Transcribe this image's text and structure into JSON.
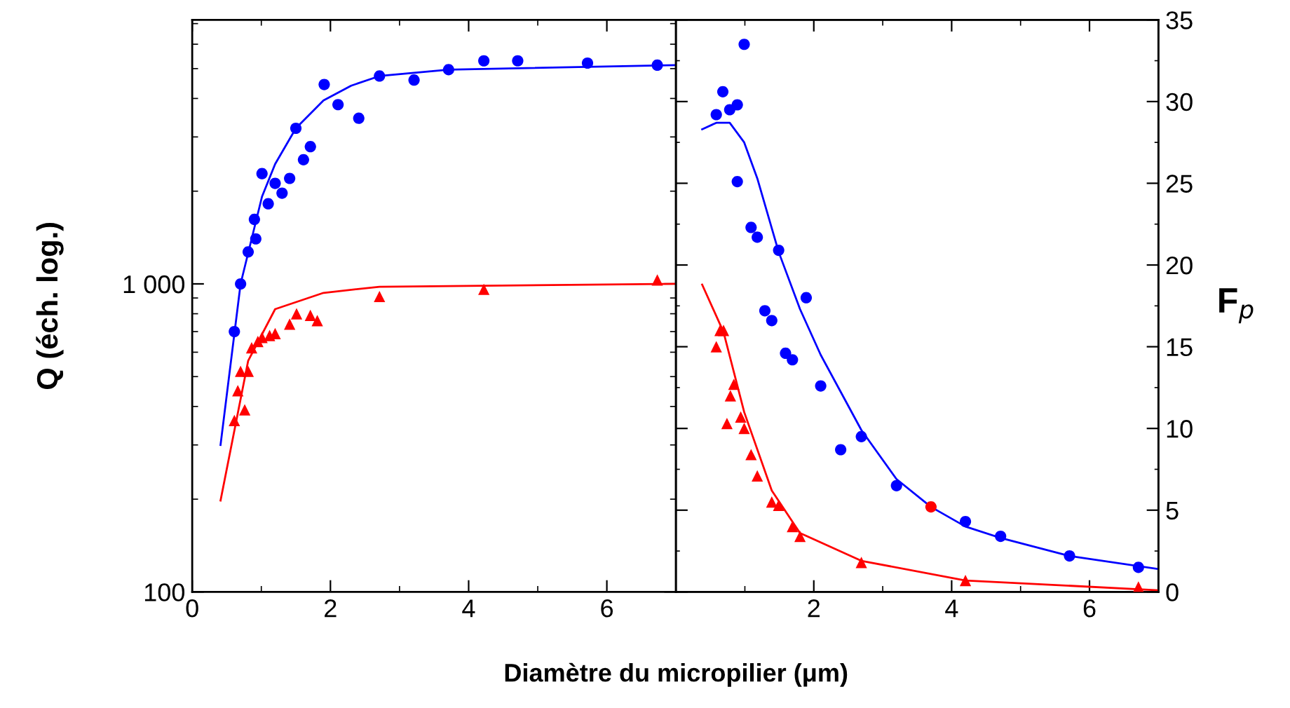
{
  "chart_data": [
    {
      "type": "scatter",
      "ylabel": "Q (éch. log.)",
      "xlabel": "Diamètre du micropilier (μm)",
      "log": "y",
      "xlim": [
        0,
        7
      ],
      "xticks": [
        0,
        2,
        4,
        6
      ],
      "ylim": [
        100,
        7200
      ],
      "yticks": [
        100,
        {
          "value": 1000,
          "label": "1 000"
        }
      ],
      "series": [
        {
          "marker": "circle",
          "color": "#0000ff",
          "x": [
            0.61,
            0.7,
            0.81,
            0.92,
            0.9,
            1.01,
            1.1,
            1.2,
            1.3,
            1.41,
            1.5,
            1.61,
            1.71,
            1.91,
            2.11,
            2.41,
            2.71,
            3.21,
            3.71,
            4.22,
            4.71,
            5.72,
            6.73
          ],
          "values": [
            700,
            1000,
            1270,
            1400,
            1620,
            2280,
            1820,
            2120,
            1970,
            2200,
            3200,
            2530,
            2790,
            4440,
            3820,
            3450,
            4730,
            4590,
            4960,
            5300,
            5300,
            5210,
            5130
          ]
        },
        {
          "marker": "triangle",
          "color": "#ff0000",
          "x": [
            0.61,
            0.66,
            0.7,
            0.76,
            0.81,
            0.86,
            0.95,
            1.01,
            1.12,
            1.2,
            1.41,
            1.51,
            1.71,
            1.81,
            2.71,
            4.22,
            6.73
          ],
          "values": [
            360,
            450,
            520,
            390,
            520,
            620,
            650,
            670,
            680,
            690,
            740,
            800,
            790,
            760,
            910,
            960,
            1030
          ]
        },
        {
          "type": "line",
          "marker": "none",
          "line_style": "solid",
          "color": "#0000ff",
          "x": [
            0.41,
            0.7,
            1.01,
            1.2,
            1.5,
            1.9,
            2.3,
            2.71,
            3.71,
            7.0
          ],
          "values": [
            300,
            1000,
            1920,
            2450,
            3200,
            3940,
            4400,
            4730,
            4960,
            5130
          ]
        },
        {
          "type": "line",
          "marker": "none",
          "line_style": "solid",
          "color": "#ff0000",
          "x": [
            0.41,
            0.81,
            1.2,
            1.9,
            2.71,
            7.0
          ],
          "values": [
            198,
            563,
            828,
            935,
            979,
            1000
          ]
        }
      ]
    },
    {
      "type": "scatter",
      "y2label": "F$_{p}$",
      "xlim": [
        0,
        7
      ],
      "xticks": [
        2,
        4,
        6
      ],
      "y2lim": [
        0,
        35
      ],
      "y2ticks": [
        0,
        5,
        10,
        15,
        20,
        25,
        30,
        35
      ],
      "series": [
        {
          "axis": "y2",
          "marker": "circle",
          "color": "#0000ff",
          "x": [
            0.585,
            0.68,
            0.78,
            0.89,
            0.99,
            0.89,
            1.09,
            1.18,
            1.49,
            1.29,
            1.39,
            1.89,
            1.59,
            1.69,
            2.1,
            2.39,
            2.69,
            3.2,
            4.2,
            4.71,
            5.71,
            6.71
          ],
          "values": [
            29.2,
            30.6,
            29.5,
            29.8,
            33.5,
            25.1,
            22.3,
            21.7,
            20.9,
            17.2,
            16.6,
            18.0,
            14.6,
            14.2,
            12.6,
            8.7,
            9.5,
            6.5,
            4.3,
            3.4,
            2.2,
            1.5
          ]
        },
        {
          "axis": "y2",
          "marker": "circle",
          "color": "#ff0000",
          "x": [
            3.7
          ],
          "values": [
            5.2
          ]
        },
        {
          "axis": "y2",
          "marker": "triangle",
          "color": "#ff0000",
          "x": [
            0.585,
            0.64,
            0.69,
            0.74,
            0.79,
            0.84,
            0.94,
            0.99,
            1.09,
            1.18,
            1.39,
            1.49,
            1.69,
            1.8,
            2.69,
            4.2,
            6.71
          ],
          "values": [
            15.0,
            16.0,
            16.0,
            10.3,
            12.0,
            12.7,
            10.7,
            10.0,
            8.4,
            7.1,
            5.5,
            5.3,
            4.0,
            3.4,
            1.8,
            0.7,
            0.3
          ]
        },
        {
          "type": "line",
          "axis": "y2",
          "marker": "none",
          "line_style": "solid",
          "color": "#0000ff",
          "x": [
            0.38,
            0.585,
            0.78,
            0.99,
            1.18,
            1.49,
            1.8,
            2.1,
            2.69,
            3.2,
            3.7,
            4.2,
            4.71,
            5.71,
            7.0
          ],
          "values": [
            28.3,
            28.7,
            28.7,
            27.5,
            25.3,
            20.8,
            17.3,
            14.5,
            9.9,
            6.9,
            5.2,
            4.0,
            3.3,
            2.2,
            1.4
          ]
        },
        {
          "type": "line",
          "axis": "y2",
          "marker": "none",
          "line_style": "solid",
          "color": "#ff0000",
          "x": [
            0.38,
            0.69,
            0.99,
            1.39,
            1.8,
            2.69,
            4.2,
            7.0
          ],
          "values": [
            18.8,
            15.9,
            11.0,
            6.2,
            3.6,
            1.9,
            0.7,
            0.1
          ]
        }
      ]
    }
  ]
}
